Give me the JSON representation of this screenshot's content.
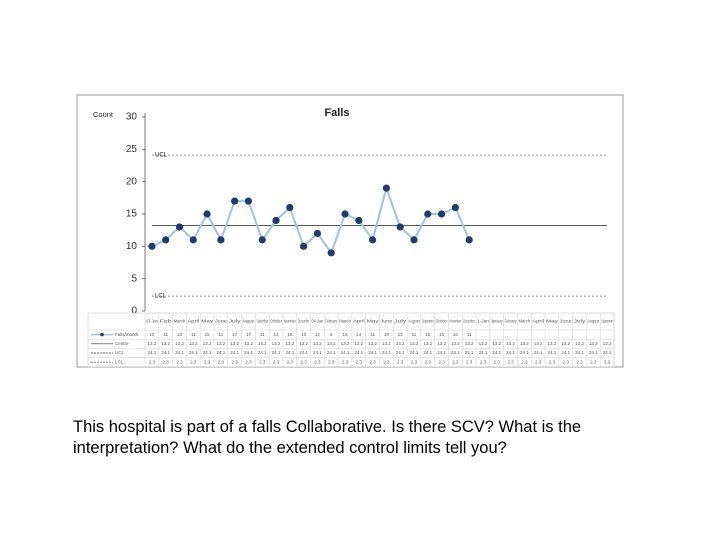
{
  "chart_data": {
    "type": "line",
    "title": "Falls",
    "y_label": "Count",
    "categories": [
      "03-Jan",
      "Feb",
      "March",
      "April",
      "May",
      "June",
      "July",
      "August",
      "September",
      "October",
      "November",
      "December",
      "04-Jan",
      "February",
      "March",
      "April",
      "May",
      "June",
      "July",
      "August",
      "September",
      "October",
      "November",
      "December",
      "1-Jan",
      "January",
      "February",
      "March",
      "April",
      "May",
      "June",
      "July",
      "August",
      "September"
    ],
    "series": [
      {
        "name": "Falls/month",
        "color": "#9cc3e6",
        "marker_color": "#1f3a6e",
        "values": [
          10,
          11,
          13,
          11,
          15,
          11,
          17,
          17,
          11,
          14,
          16,
          10,
          12,
          9,
          15,
          14,
          11,
          19,
          13,
          11,
          15,
          15,
          16,
          11,
          null,
          null,
          null,
          null,
          null,
          null,
          null,
          null,
          null,
          null
        ]
      }
    ],
    "limits": [
      {
        "name": "Centre",
        "label": "",
        "value": 13.2,
        "style": "solid"
      },
      {
        "name": "UCL",
        "label": "UCL",
        "value": 24.1,
        "style": "dashed"
      },
      {
        "name": "LCL",
        "label": "LCL",
        "value": 2.3,
        "style": "dashed"
      }
    ],
    "ylim": [
      0,
      30
    ],
    "yticks": [
      0,
      5,
      10,
      15,
      20,
      25,
      30
    ]
  },
  "caption": [
    "This hospital is part of a falls Collaborative. Is there SCV? What is the",
    "interpretation? What do the extended control limits tell you?"
  ]
}
